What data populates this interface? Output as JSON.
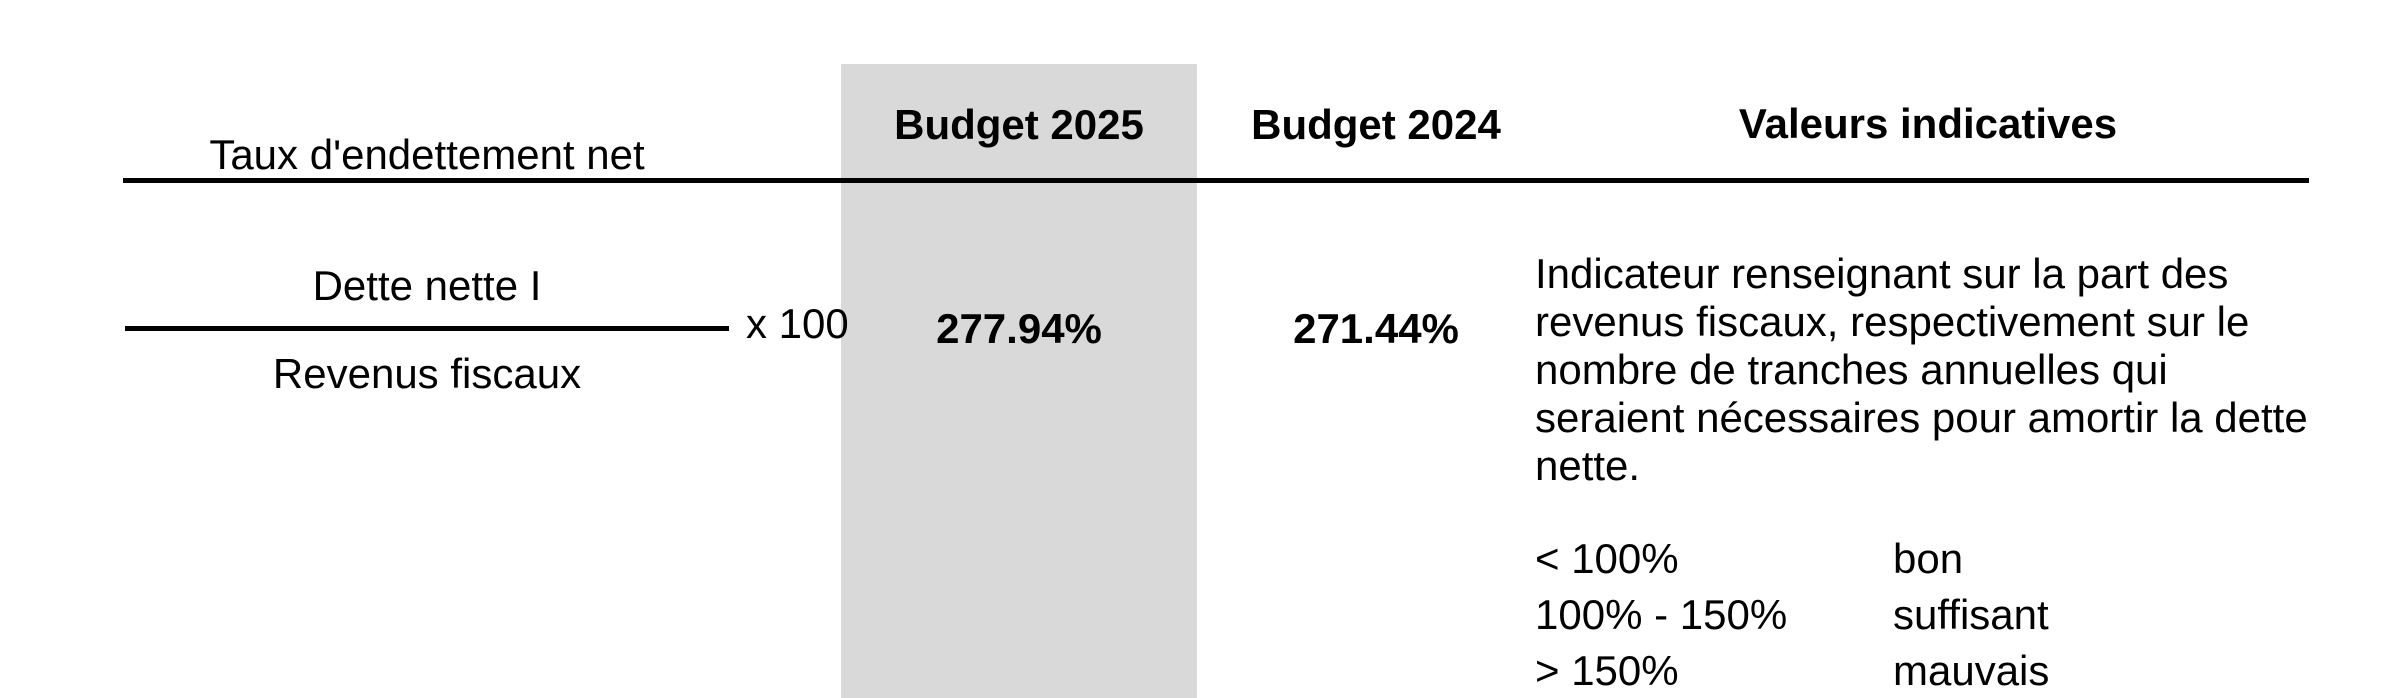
{
  "indicator": {
    "name": "Taux d'endettement net",
    "columns": {
      "budget_2025": "Budget 2025",
      "budget_2024": "Budget 2024",
      "valeurs_indicatives": "Valeurs indicatives"
    },
    "formula": {
      "numerator": "Dette nette I",
      "denominator": "Revenus fiscaux",
      "multiplier": "x 100"
    },
    "values": {
      "budget_2025": "277.94%",
      "budget_2024": "271.44%"
    },
    "description": "Indicateur renseignant sur la part des revenus fiscaux, respectivement sur le nombre de tranches annuelles qui seraient nécessaires pour amortir la dette nette.",
    "description_lines": [
      "Indicateur renseignant sur la part des",
      "revenus fiscaux, respectivement sur le",
      "nombre de tranches annuelles qui",
      "seraient nécessaires pour amortir la dette",
      "nette."
    ],
    "thresholds": [
      {
        "range": "< 100%",
        "rating": "bon"
      },
      {
        "range": "100% - 150%",
        "rating": "suffisant"
      },
      {
        "range": "> 150%",
        "rating": "mauvais"
      }
    ],
    "colors": {
      "highlight_column": "#d9d9d9",
      "text": "#000000",
      "rule": "#000000"
    }
  }
}
